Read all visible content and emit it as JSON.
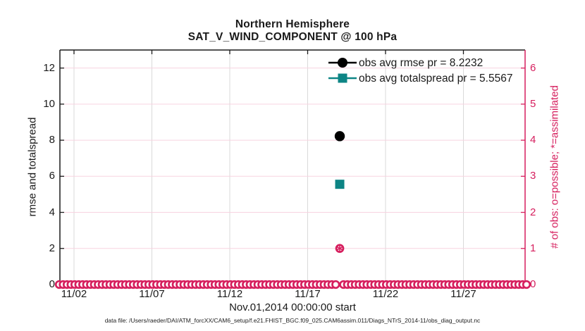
{
  "window": {
    "background": "#ffffff"
  },
  "colors": {
    "axis_black": "#1a1a1a",
    "obs_pink": "#d61f5e",
    "spread_teal": "#0d8585",
    "grid_vertical": "#d9d9d9",
    "grid_horizontal": "#f8d3e0"
  },
  "chart_data": {
    "type": "line",
    "title": "Northern Hemisphere",
    "subtitle": "SAT_V_WIND_COMPONENT @ 100 hPa",
    "xlabel": "Nov.01,2014 00:00:00 start",
    "ylabel_left": "rmse and totalspread",
    "ylabel_right": "# of obs: o=possible; *=assimilated",
    "x_ticks": [
      {
        "day": 1,
        "label": "11/02"
      },
      {
        "day": 6,
        "label": "11/07"
      },
      {
        "day": 11,
        "label": "11/12"
      },
      {
        "day": 16,
        "label": "11/17"
      },
      {
        "day": 21,
        "label": "11/22"
      },
      {
        "day": 26,
        "label": "11/27"
      }
    ],
    "left_axis": {
      "range": [
        0,
        13
      ],
      "ticks": [
        0,
        2,
        4,
        6,
        8,
        10,
        12
      ],
      "color": "#1a1a1a"
    },
    "right_axis": {
      "range": [
        0,
        6.5
      ],
      "ticks": [
        0,
        1,
        2,
        3,
        4,
        5,
        6
      ],
      "color": "#d61f5e"
    },
    "grid": {
      "vertical_color": "#d9d9d9",
      "horizontal_color": "#f8d3e0",
      "grid_on": true
    },
    "legend_position": "upper-right-inside",
    "series": [
      {
        "name": "obs avg rmse pr = 8.2232",
        "axis": "left",
        "marker": "filled-circle",
        "color": "#000000",
        "points": [
          {
            "day": 18.06,
            "value": 8.2232
          }
        ]
      },
      {
        "name": "obs avg totalspread pr = 5.5567",
        "axis": "left",
        "marker": "filled-square",
        "color": "#0d8585",
        "points": [
          {
            "day": 18.06,
            "value": 5.5567
          }
        ]
      },
      {
        "name": "possible (o)",
        "axis": "right",
        "marker": "open-circle",
        "color": "#d61f5e",
        "band": {
          "start_day": 0.05,
          "end_day": 30.06,
          "step_day": 0.25,
          "value": 0,
          "gap_days": [
            18.05
          ]
        },
        "points": [
          {
            "day": 18.06,
            "value": 1
          }
        ]
      },
      {
        "name": "assimilated (*)",
        "axis": "right",
        "marker": "asterisk",
        "color": "#d61f5e",
        "points": [
          {
            "day": 18.06,
            "value": 1
          }
        ]
      }
    ]
  },
  "legend": {
    "items": [
      {
        "label": "obs avg rmse pr = 8.2232",
        "marker": "filled-circle",
        "color": "#000000"
      },
      {
        "label": "obs avg totalspread pr = 5.5567",
        "marker": "filled-square",
        "color": "#0d8585"
      }
    ]
  },
  "caption": "data file: /Users/raeder/DAI/ATM_forcXX/CAM6_setup/f.e21.FHIST_BGC.f09_025.CAM6assim.011/Diags_NTrS_2014-11/obs_diag_output.nc"
}
